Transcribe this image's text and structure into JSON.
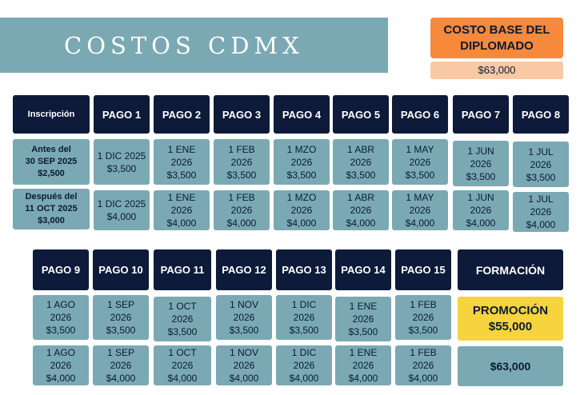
{
  "title": "COSTOS CDMX",
  "base": {
    "label": "COSTO BASE DEL DIPLOMADO",
    "value": "$63,000"
  },
  "inscripcion": {
    "header": "Inscripción",
    "before": "Antes del\n30 SEP 2025\n$2,500",
    "after": "Después del\n11  OCT 2025\n$3,000"
  },
  "row1": {
    "headers": [
      "PAGO 1",
      "PAGO 2",
      "PAGO 3",
      "PAGO 4",
      "PAGO 5",
      "PAGO 6",
      "PAGO 7",
      "PAGO 8"
    ],
    "before": [
      "1 DIC 2025\n$3,500",
      "1 ENE\n2026\n$3,500",
      "1 FEB\n2026\n$3,500",
      "1 MZO\n2026\n$3,500",
      "1 ABR\n2026\n$3,500",
      "1 MAY\n2026\n$3,500",
      "1 JUN\n2026\n$3,500",
      "1 JUL\n2026\n$3,500"
    ],
    "after": [
      "1 DIC 2025\n$4,000",
      "1 ENE\n2026\n$4,000",
      "1 FEB\n2026\n$4,000",
      "1 MZO\n2026\n$4,000",
      "1 ABR\n2026\n$4,000",
      "1 MAY\n2026\n$4,000",
      "1 JUN\n2026\n$4,000",
      "1 JUL\n2026\n$4,000"
    ]
  },
  "row2": {
    "headers": [
      "PAGO 9",
      "PAGO 10",
      "PAGO 11",
      "PAGO 12",
      "PAGO 13",
      "PAGO 14",
      "PAGO 15"
    ],
    "before": [
      "1 AGO\n2026\n$3,500",
      "1  SEP\n2026\n$3,500",
      "1 OCT\n2026\n$3,500",
      "1 NOV\n2026\n$3,500",
      "1 DIC\n2026\n$3,500",
      "1 ENE\n2026\n$3,500",
      "1 FEB\n2026\n$3,500"
    ],
    "after": [
      "1 AGO\n2026\n$4,000",
      "1  SEP\n2026\n$4,000",
      "1 OCT\n2026\n$4,000",
      "1 NOV\n2026\n$4,000",
      "1 DIC\n2026\n$4,000",
      "1 ENE\n2026\n$4,000",
      "1 FEB\n2026\n$4,000"
    ]
  },
  "formacion": {
    "header": "FORMACIÓN",
    "promo": "PROMOCIÓN\n$55,000",
    "regular": "$63,000"
  },
  "colors": {
    "banner": "#7aa9b3",
    "header": "#0d1a3a",
    "accent": "#f7893c",
    "promo": "#f7d33d"
  }
}
